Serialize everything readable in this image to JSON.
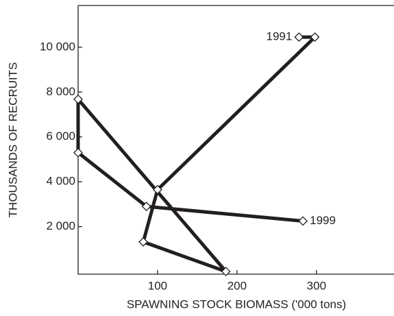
{
  "chart_data": {
    "type": "line",
    "x_label": "SPAWNING STOCK BIOMASS ('000 tons)",
    "y_label": "THOUSANDS OF RECRUITS",
    "x": [
      278,
      298,
      100,
      82,
      186,
      0,
      0,
      86,
      283
    ],
    "series": [
      {
        "color": "#231f20",
        "values": [
          10450,
          10450,
          3650,
          1320,
          0,
          7680,
          5300,
          2900,
          2250
        ]
      }
    ],
    "annotations": [
      "1991",
      "1999"
    ],
    "xlim": [
      0,
      395
    ],
    "xticks": [
      100,
      200,
      300
    ],
    "ylim": [
      -120,
      11860
    ],
    "yticks": [
      {
        "value": 2000,
        "label": "2 000"
      },
      {
        "value": 4000,
        "label": "4 000"
      },
      {
        "value": 6000,
        "label": "6 000"
      },
      {
        "value": 8000,
        "label": "8 000"
      },
      {
        "value": 10000,
        "label": "10 000"
      }
    ]
  }
}
